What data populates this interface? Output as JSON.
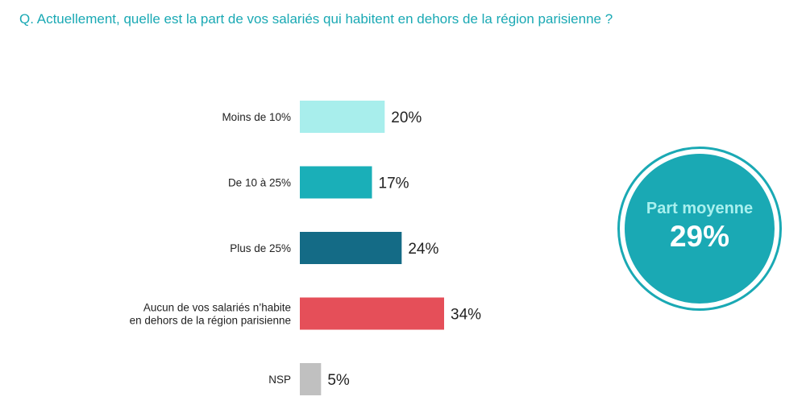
{
  "question": "Q. Actuellement, quelle est la part de vos salariés qui habitent en dehors de la région parisienne ?",
  "chart_data": {
    "type": "bar",
    "orientation": "horizontal",
    "categories": [
      [
        "Moins de 10%"
      ],
      [
        "De 10 à 25%"
      ],
      [
        "Plus de 25%"
      ],
      [
        "Aucun de vos salariés n’habite",
        "en dehors de la région parisienne"
      ],
      [
        "NSP"
      ]
    ],
    "values": [
      20,
      17,
      24,
      34,
      5
    ],
    "value_labels": [
      "20%",
      "17%",
      "24%",
      "34%",
      "5%"
    ],
    "colors": [
      "#a8eeec",
      "#1aafb8",
      "#146b86",
      "#e54f59",
      "#c0c0c0"
    ],
    "xlim": [
      0,
      34
    ],
    "grid": false,
    "legend": "none"
  },
  "summary": {
    "label": "Part moyenne",
    "value": "29%",
    "colors": {
      "fill": "#1aa9b4",
      "title": "#a8f0ee",
      "value": "#ffffff"
    }
  }
}
